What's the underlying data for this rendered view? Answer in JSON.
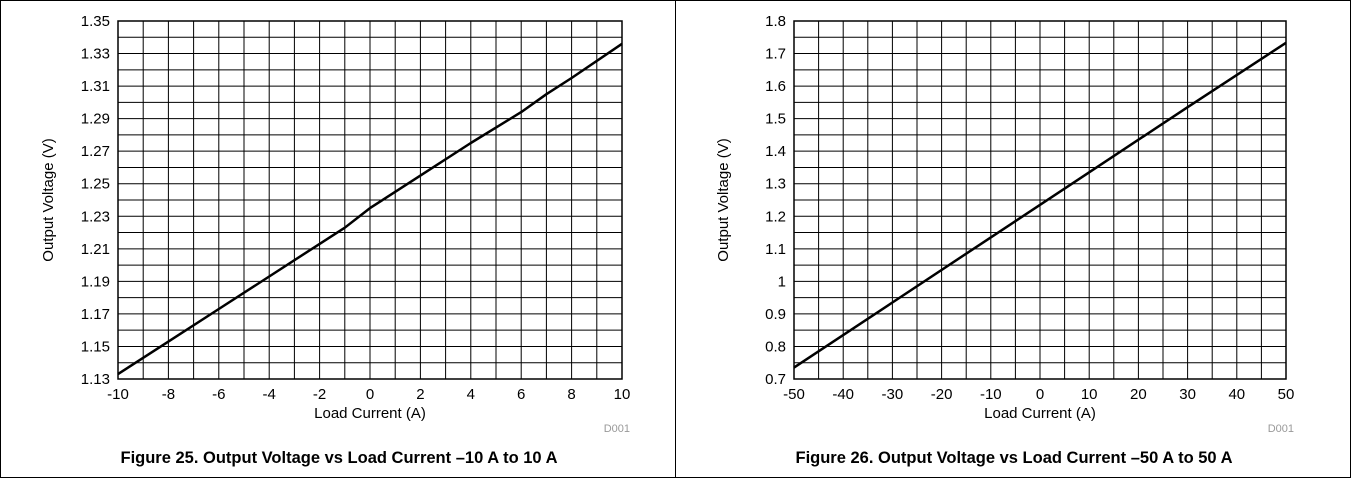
{
  "chart_data": [
    {
      "type": "line",
      "title": "",
      "caption": "Figure 25. Output Voltage vs Load Current –10 A to 10 A",
      "xlabel": "Load Current (A)",
      "ylabel": "Output Voltage (V)",
      "figure_code": "D001",
      "xlim": [
        -10,
        10
      ],
      "ylim": [
        1.13,
        1.35
      ],
      "xticks": [
        "-10",
        "-8",
        "-6",
        "-4",
        "-2",
        "0",
        "2",
        "4",
        "6",
        "8",
        "10"
      ],
      "yticks": [
        "1.13",
        "1.15",
        "1.17",
        "1.19",
        "1.21",
        "1.23",
        "1.25",
        "1.27",
        "1.29",
        "1.31",
        "1.33",
        "1.35"
      ],
      "x_minor_step": 1,
      "y_minor_step": 0.01,
      "grid": true,
      "legend": "none",
      "line_color": "#000000",
      "series": [
        {
          "x": [
            -10,
            -8,
            -6,
            -4,
            -2,
            -1,
            0,
            2,
            4,
            6,
            7,
            8,
            10
          ],
          "y": [
            1.133,
            1.153,
            1.173,
            1.193,
            1.213,
            1.223,
            1.235,
            1.255,
            1.275,
            1.294,
            1.305,
            1.315,
            1.336
          ]
        }
      ]
    },
    {
      "type": "line",
      "title": "",
      "caption": "Figure 26. Output Voltage vs Load Current –50 A to 50 A",
      "xlabel": "Load Current (A)",
      "ylabel": "Output Voltage (V)",
      "figure_code": "D001",
      "xlim": [
        -50,
        50
      ],
      "ylim": [
        0.7,
        1.8
      ],
      "xticks": [
        "-50",
        "-40",
        "-30",
        "-20",
        "-10",
        "0",
        "10",
        "20",
        "30",
        "40",
        "50"
      ],
      "yticks": [
        "0.7",
        "0.8",
        "0.9",
        "1",
        "1.1",
        "1.2",
        "1.3",
        "1.4",
        "1.5",
        "1.6",
        "1.7",
        "1.8"
      ],
      "x_minor_step": 5,
      "y_minor_step": 0.05,
      "grid": true,
      "legend": "none",
      "line_color": "#000000",
      "series": [
        {
          "x": [
            -50,
            -30,
            -10,
            10,
            30,
            50
          ],
          "y": [
            0.735,
            0.935,
            1.135,
            1.335,
            1.535,
            1.733
          ]
        }
      ]
    }
  ]
}
